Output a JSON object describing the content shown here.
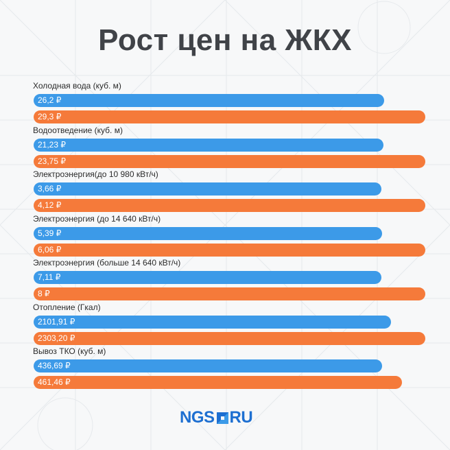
{
  "title": "Рост цен на ЖКХ",
  "colors": {
    "old": "#3c9ae8",
    "new": "#f57a3a",
    "title": "#404348",
    "background": "#f7f8f9",
    "logo": "#1d6fd1"
  },
  "logo": {
    "brand": "NGS",
    "domain": "RU",
    "square_icon": "logo-square-icon"
  },
  "chart_data": {
    "type": "bar",
    "orientation": "horizontal",
    "categories": [
      "Холодная вода (куб. м)",
      "Водоотведение (куб. м)",
      "Электроэнергия(до 10 980 кВт/ч)",
      "Электроэнергия (до 14 640 кВт/ч)",
      "Электроэнергия (больше 14 640 кВт/ч)",
      "Отопление (Гкал)",
      "Вывоз ТКО (куб. м)"
    ],
    "series": [
      {
        "values": [
          26.2,
          21.23,
          3.66,
          5.39,
          7.11,
          2101.91,
          436.69
        ],
        "labels": [
          "26,2 ₽",
          "21,23 ₽",
          "3,66 ₽",
          "5,39 ₽",
          "7,11 ₽",
          "2101,91 ₽",
          "436,69 ₽"
        ]
      },
      {
        "values": [
          29.3,
          23.75,
          4.12,
          6.06,
          8,
          2303.2,
          461.46
        ],
        "labels": [
          "29,3 ₽",
          "23,75 ₽",
          "4,12 ₽",
          "6,06 ₽",
          "8 ₽",
          "2303,20 ₽",
          "461,46 ₽"
        ]
      }
    ],
    "title": "Рост цен на ЖКХ",
    "xlabel": "",
    "ylabel": "",
    "grid": false,
    "legend": "none"
  }
}
